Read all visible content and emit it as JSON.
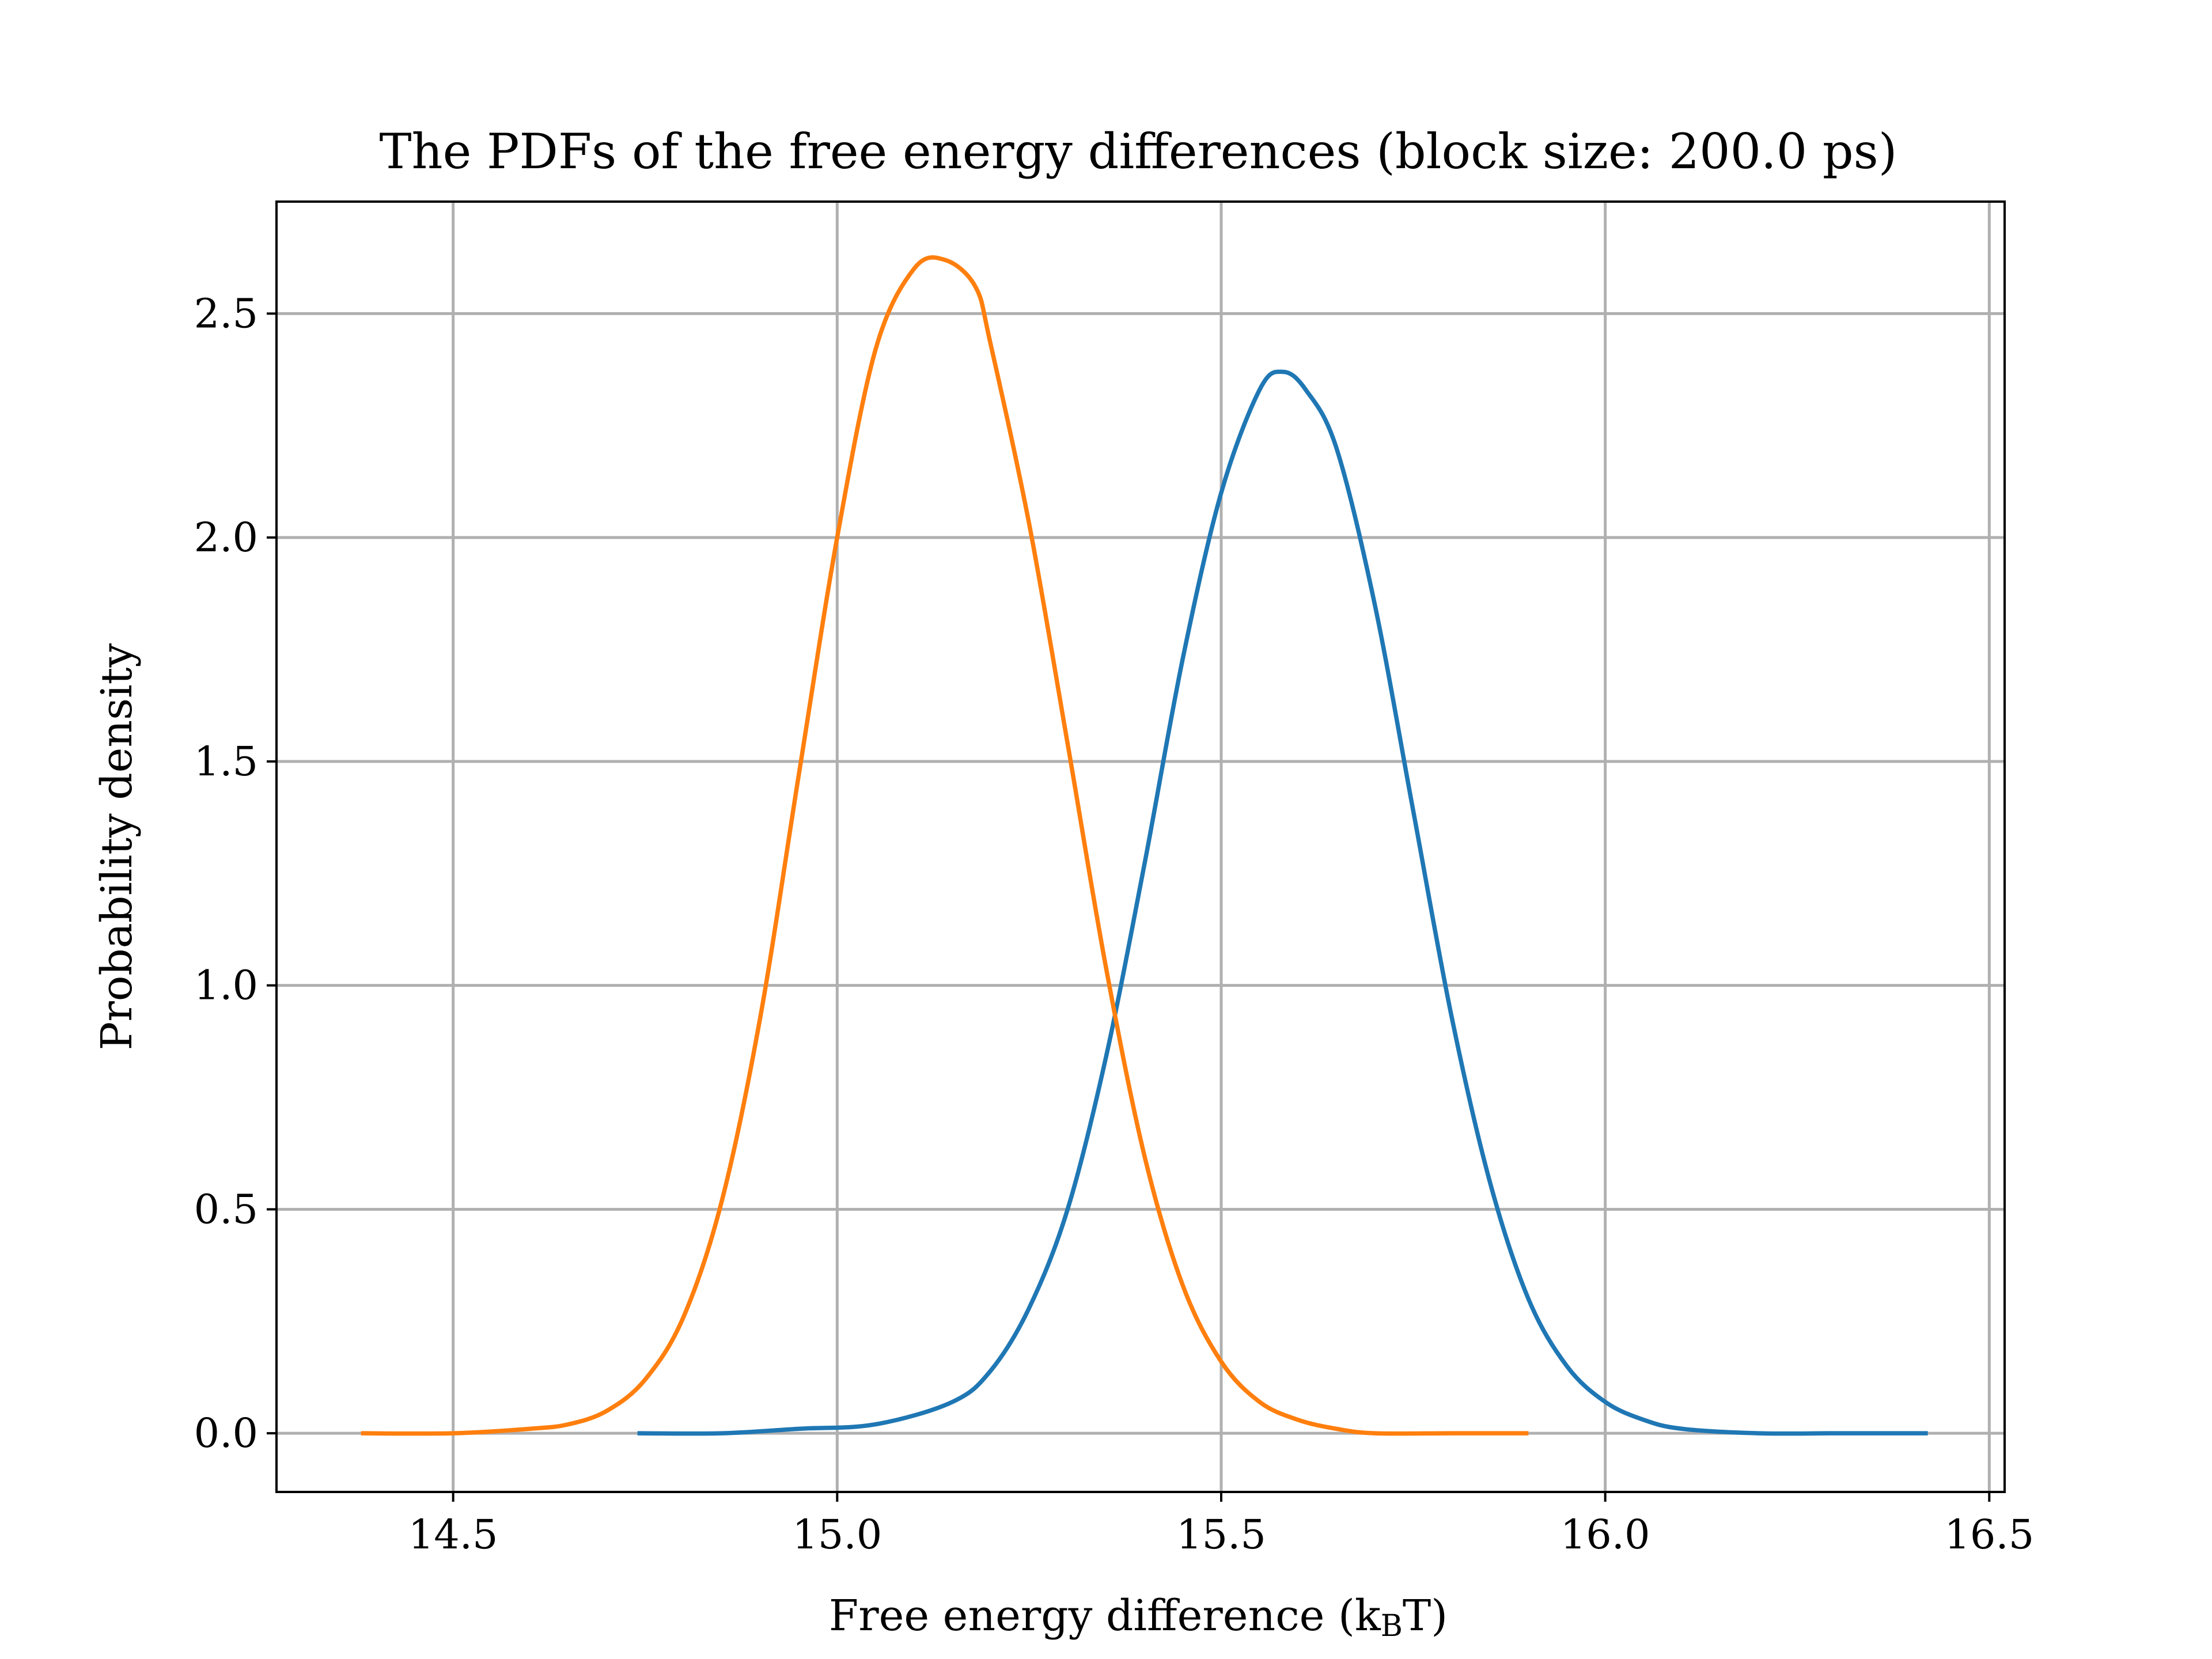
{
  "chart_data": {
    "type": "line",
    "title": "The PDFs of the free energy differences (block size: 200.0 ps)",
    "xlabel_main": "Free energy difference (k",
    "xlabel_sub": "B",
    "xlabel_end": "T)",
    "ylabel": "Probability density",
    "xlim": [
      14.27,
      16.52
    ],
    "ylim": [
      -0.131,
      2.75
    ],
    "x_ticks": [
      14.5,
      15.0,
      15.5,
      16.0,
      16.5
    ],
    "x_tick_labels": [
      "14.5",
      "15.0",
      "15.5",
      "16.0",
      "16.5"
    ],
    "y_ticks": [
      0.0,
      0.5,
      1.0,
      1.5,
      2.0,
      2.5
    ],
    "y_tick_labels": [
      "0.0",
      "0.5",
      "1.0",
      "1.5",
      "2.0",
      "2.5"
    ],
    "grid": true,
    "series": [
      {
        "color": "#1f77b4",
        "x": [
          14.74,
          14.85,
          14.95,
          15.05,
          15.15,
          15.2,
          15.25,
          15.3,
          15.35,
          15.4,
          15.45,
          15.5,
          15.55,
          15.58,
          15.61,
          15.65,
          15.7,
          15.75,
          15.8,
          15.85,
          15.9,
          15.95,
          16.0,
          16.05,
          16.1,
          16.2,
          16.3,
          16.42
        ],
        "y": [
          0.0,
          0.0,
          0.01,
          0.02,
          0.07,
          0.14,
          0.28,
          0.5,
          0.84,
          1.27,
          1.73,
          2.1,
          2.33,
          2.37,
          2.33,
          2.2,
          1.85,
          1.39,
          0.93,
          0.56,
          0.3,
          0.15,
          0.07,
          0.03,
          0.01,
          0.0,
          0.0,
          0.0
        ]
      },
      {
        "color": "#ff7f0e",
        "x": [
          14.38,
          14.5,
          14.6,
          14.65,
          14.7,
          14.75,
          14.8,
          14.85,
          14.9,
          14.95,
          15.0,
          15.05,
          15.1,
          15.14,
          15.18,
          15.2,
          15.25,
          15.3,
          15.35,
          15.4,
          15.45,
          15.5,
          15.55,
          15.6,
          15.65,
          15.7,
          15.8,
          15.9
        ],
        "y": [
          0.0,
          0.0,
          0.01,
          0.02,
          0.05,
          0.12,
          0.26,
          0.52,
          0.93,
          1.47,
          2.0,
          2.42,
          2.6,
          2.62,
          2.56,
          2.43,
          2.03,
          1.54,
          1.04,
          0.62,
          0.33,
          0.16,
          0.07,
          0.03,
          0.01,
          0.0,
          0.0,
          0.0
        ]
      }
    ]
  }
}
